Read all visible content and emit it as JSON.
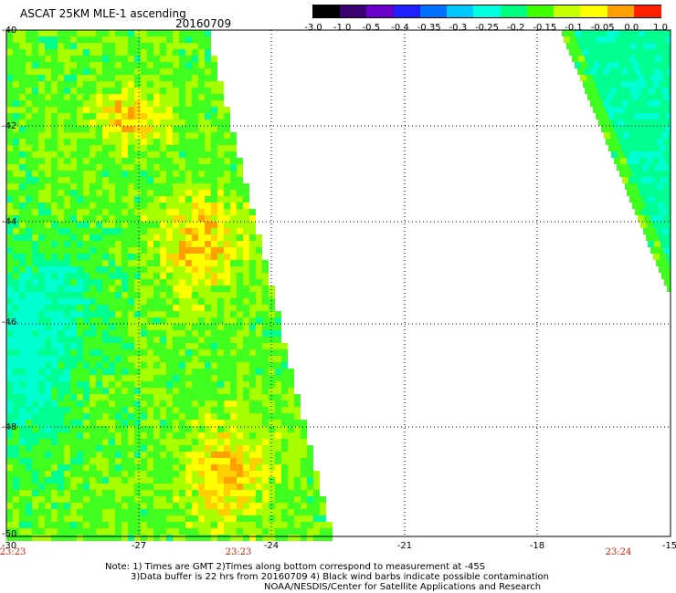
{
  "header": {
    "title": "ASCAT 25KM MLE-1 ascending",
    "date": "20160709"
  },
  "colorbar": {
    "labels": [
      "-3.0",
      "-1.0",
      "-0.5",
      "-0.4",
      "-0.35",
      "-0.3",
      "-0.25",
      "-0.2",
      "-0.15",
      "-0.1",
      "-0.05",
      "0.0",
      "1.0"
    ],
    "colors": [
      "#000000",
      "#3a0070",
      "#6a00c8",
      "#2020ff",
      "#0070ff",
      "#00c8ff",
      "#00ffe0",
      "#00ff80",
      "#40ff00",
      "#c8ff00",
      "#ffff00",
      "#ffa000",
      "#ff2000"
    ]
  },
  "axes": {
    "x_labels": [
      "-30",
      "-27",
      "-24",
      "-21",
      "-18",
      "-15"
    ],
    "y_labels": [
      "-40",
      "-42",
      "-44",
      "-46",
      "-48",
      "-50"
    ],
    "x_range": [
      -30,
      -15
    ],
    "y_range": [
      -50,
      -40
    ]
  },
  "times": [
    "23:23",
    "23:23",
    "23:24"
  ],
  "notes": {
    "line1": "Note: 1) Times are GMT 2)Times along bottom correspond to measurement at -45S",
    "line2": "3)Data buffer is 22 hrs from 20160709 4) Black wind barbs indicate possible contamination",
    "line3": "NOAA/NESDIS/Center for Satellite Applications and Research"
  }
}
